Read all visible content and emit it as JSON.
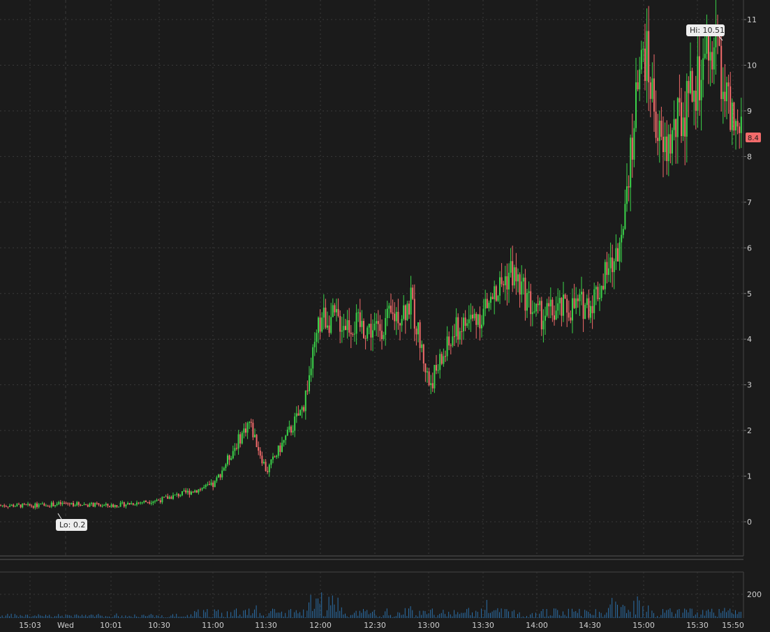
{
  "chart_data": [
    {
      "type": "candlestick",
      "title": "",
      "xlabel": "",
      "ylabel": "",
      "ylim": [
        -0.75,
        11.2
      ],
      "y_ticks": [
        "0",
        "1",
        "2",
        "3",
        "4",
        "5",
        "6",
        "7",
        "8",
        "9",
        "10",
        "11"
      ],
      "x_ticks": [
        "15:03",
        "Wed",
        "10:01",
        "10:30",
        "11:00",
        "11:30",
        "12:00",
        "12:30",
        "13:00",
        "13:30",
        "14:00",
        "14:30",
        "15:00",
        "15:30",
        "15:50"
      ],
      "grid": true,
      "colors": {
        "up": "#3bd44a",
        "down": "#f26b6b",
        "background": "#1b1b1b",
        "grid": "#3a3a3a",
        "volume": "#2b6fa8"
      },
      "hi_label": "Hi: 10.51",
      "lo_label": "Lo: 0.2",
      "last_price": "8.4",
      "key_prices": [
        {
          "time": "15:03",
          "price": 0.35
        },
        {
          "time": "Wed",
          "price": 0.4
        },
        {
          "time": "10:01",
          "price": 0.35
        },
        {
          "time": "10:30",
          "price": 0.48
        },
        {
          "time": "11:00",
          "price": 0.8
        },
        {
          "time": "11:20",
          "price": 2.2
        },
        {
          "time": "11:30",
          "price": 1.1
        },
        {
          "time": "11:50",
          "price": 2.5
        },
        {
          "time": "12:00",
          "price": 4.5
        },
        {
          "time": "12:30",
          "price": 4.2
        },
        {
          "time": "12:50",
          "price": 4.8
        },
        {
          "time": "13:00",
          "price": 3.0
        },
        {
          "time": "13:15",
          "price": 4.2
        },
        {
          "time": "13:30",
          "price": 4.6
        },
        {
          "time": "13:45",
          "price": 5.5
        },
        {
          "time": "14:00",
          "price": 4.5
        },
        {
          "time": "14:30",
          "price": 4.8
        },
        {
          "time": "14:45",
          "price": 5.8
        },
        {
          "time": "14:50",
          "price": 7.5
        },
        {
          "time": "15:00",
          "price": 10.4
        },
        {
          "time": "15:10",
          "price": 8.0
        },
        {
          "time": "15:30",
          "price": 9.6
        },
        {
          "time": "15:40",
          "price": 10.51
        },
        {
          "time": "15:50",
          "price": 8.4
        }
      ]
    },
    {
      "type": "bar",
      "title": "",
      "y_ticks": [
        "200"
      ],
      "ylim": [
        0,
        330
      ]
    }
  ]
}
